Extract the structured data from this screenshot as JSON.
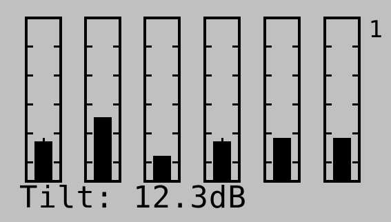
{
  "meters": [
    {
      "name": "meter-1",
      "level": 0.24,
      "peak": true
    },
    {
      "name": "meter-2",
      "level": 0.39,
      "peak": false
    },
    {
      "name": "meter-3",
      "level": 0.15,
      "peak": false
    },
    {
      "name": "meter-4",
      "level": 0.24,
      "peak": true
    },
    {
      "name": "meter-5",
      "level": 0.26,
      "peak": false
    },
    {
      "name": "meter-6",
      "level": 0.26,
      "peak": false
    }
  ],
  "page_number": "1",
  "readout": {
    "label": "Tilt:",
    "value": "12.3dB"
  },
  "colors": {
    "background": "#c0c0c0",
    "foreground": "#000000"
  }
}
